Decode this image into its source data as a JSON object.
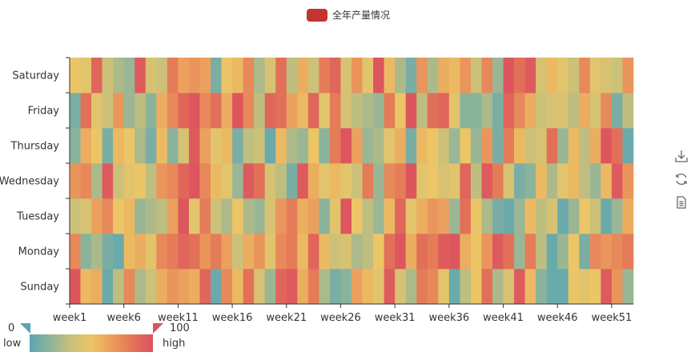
{
  "legend": {
    "label": "全年产量情况",
    "color": "#c23531"
  },
  "toolbox": {
    "icons": [
      "download-icon",
      "refresh-icon",
      "data-view-icon"
    ]
  },
  "visual_map": {
    "min": 0,
    "max": 100,
    "min_label": "0",
    "max_label": "100",
    "text_low": "low",
    "text_high": "high",
    "colors": [
      "#5aa6b2",
      "#8fb49a",
      "#c8c07a",
      "#ecc566",
      "#eb9d5c",
      "#e37457",
      "#dc5060"
    ]
  },
  "chart_data": {
    "type": "heatmap",
    "title": "",
    "xlabel": "",
    "ylabel": "",
    "x_tick_labels": [
      "week1",
      "week6",
      "week11",
      "week16",
      "week21",
      "week26",
      "week31",
      "week36",
      "week41",
      "week46",
      "week51"
    ],
    "y_categories": [
      "Sunday",
      "Monday",
      "Tuesday",
      "Wednesday",
      "Thursday",
      "Friday",
      "Saturday"
    ],
    "x_categories": [
      "week1",
      "week2",
      "week3",
      "week4",
      "week5",
      "week6",
      "week7",
      "week8",
      "week9",
      "week10",
      "week11",
      "week12",
      "week13",
      "week14",
      "week15",
      "week16",
      "week17",
      "week18",
      "week19",
      "week20",
      "week21",
      "week22",
      "week23",
      "week24",
      "week25",
      "week26",
      "week27",
      "week28",
      "week29",
      "week30",
      "week31",
      "week32",
      "week33",
      "week34",
      "week35",
      "week36",
      "week37",
      "week38",
      "week39",
      "week40",
      "week41",
      "week42",
      "week43",
      "week44",
      "week45",
      "week46",
      "week47",
      "week48",
      "week49",
      "week50",
      "week51",
      "week52"
    ],
    "values": [
      [
        97,
        55,
        60,
        5,
        30,
        75,
        25,
        35,
        60,
        70,
        65,
        60,
        90,
        5,
        75,
        55,
        85,
        40,
        20,
        90,
        95,
        60,
        80,
        25,
        10,
        15,
        65,
        55,
        45,
        95,
        40,
        25,
        80,
        75,
        45,
        5,
        30,
        50,
        85,
        25,
        40,
        95,
        55,
        15,
        5,
        5,
        50,
        45,
        50,
        95,
        70,
        20
      ],
      [
        75,
        15,
        25,
        10,
        5,
        55,
        60,
        45,
        75,
        80,
        90,
        85,
        70,
        80,
        65,
        35,
        60,
        70,
        45,
        75,
        80,
        55,
        90,
        55,
        35,
        40,
        25,
        30,
        50,
        85,
        97,
        60,
        85,
        80,
        95,
        97,
        60,
        50,
        70,
        95,
        85,
        20,
        80,
        30,
        5,
        20,
        50,
        10,
        75,
        70,
        75,
        80
      ],
      [
        35,
        40,
        65,
        75,
        50,
        55,
        20,
        25,
        30,
        65,
        97,
        45,
        80,
        35,
        25,
        50,
        25,
        20,
        40,
        70,
        80,
        60,
        65,
        15,
        45,
        97,
        50,
        30,
        20,
        55,
        90,
        45,
        60,
        70,
        65,
        20,
        85,
        50,
        25,
        10,
        5,
        20,
        55,
        30,
        40,
        5,
        20,
        50,
        35,
        5,
        20,
        60
      ],
      [
        70,
        75,
        25,
        95,
        35,
        45,
        50,
        30,
        70,
        75,
        90,
        97,
        75,
        55,
        45,
        20,
        95,
        85,
        40,
        30,
        10,
        95,
        60,
        45,
        55,
        45,
        35,
        80,
        20,
        75,
        80,
        97,
        45,
        50,
        40,
        45,
        90,
        30,
        95,
        80,
        40,
        10,
        15,
        55,
        25,
        45,
        55,
        30,
        20,
        55,
        95,
        70
      ],
      [
        15,
        60,
        50,
        10,
        55,
        50,
        25,
        10,
        55,
        15,
        40,
        95,
        65,
        45,
        55,
        10,
        30,
        35,
        5,
        55,
        25,
        20,
        50,
        15,
        80,
        97,
        65,
        20,
        25,
        45,
        60,
        10,
        55,
        50,
        35,
        20,
        50,
        20,
        70,
        10,
        80,
        55,
        35,
        40,
        85,
        20,
        55,
        30,
        60,
        97,
        85,
        5
      ],
      [
        10,
        85,
        45,
        35,
        70,
        20,
        30,
        15,
        60,
        75,
        90,
        97,
        75,
        85,
        60,
        97,
        75,
        30,
        90,
        85,
        65,
        55,
        90,
        45,
        80,
        40,
        30,
        25,
        20,
        80,
        50,
        97,
        30,
        85,
        90,
        45,
        15,
        15,
        25,
        10,
        90,
        75,
        60,
        35,
        40,
        40,
        30,
        60,
        40,
        75,
        10,
        30
      ],
      [
        50,
        45,
        90,
        35,
        25,
        20,
        95,
        40,
        35,
        80,
        65,
        70,
        65,
        10,
        50,
        55,
        75,
        25,
        40,
        85,
        30,
        60,
        35,
        80,
        90,
        40,
        70,
        45,
        97,
        55,
        25,
        10,
        70,
        25,
        60,
        55,
        70,
        35,
        75,
        20,
        97,
        85,
        95,
        40,
        55,
        45,
        35,
        75,
        45,
        40,
        35,
        70
      ]
    ],
    "value_range": [
      0,
      100
    ],
    "grid": false,
    "legend_position": "top-center"
  }
}
